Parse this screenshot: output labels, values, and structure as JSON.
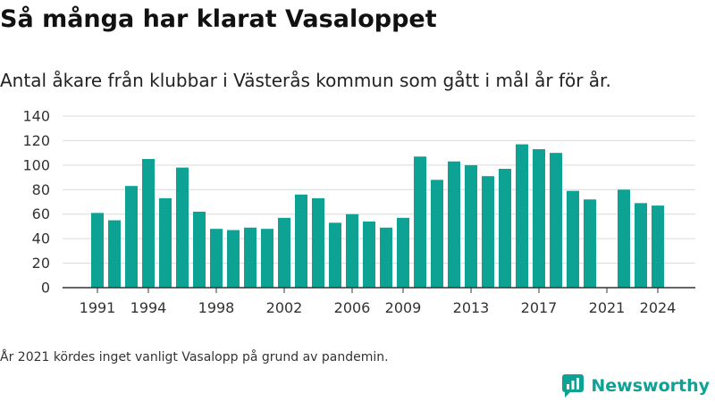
{
  "title": "Så många har klarat Vasaloppet",
  "subtitle": "Antal åkare från klubbar i Västerås kommun som gått i mål år för år.",
  "footnote": "År 2021 kördes inget vanligt Vasalopp på grund av pandemin.",
  "brand": "Newsworthy",
  "colors": {
    "bar": "#0ea294",
    "grid": "#d9d9d9",
    "axis": "#333333",
    "brand": "#0ea294"
  },
  "chart_data": {
    "type": "bar",
    "title": "Så många har klarat Vasaloppet",
    "xlabel": "",
    "ylabel": "",
    "ylim": [
      0,
      140
    ],
    "yticks": [
      0,
      20,
      40,
      60,
      80,
      100,
      120,
      140
    ],
    "xticks": [
      "1991",
      "1994",
      "1998",
      "2002",
      "2006",
      "2009",
      "2013",
      "2017",
      "2021",
      "2024"
    ],
    "grid": true,
    "legend": "none",
    "categories": [
      "1991",
      "1992",
      "1993",
      "1994",
      "1995",
      "1996",
      "1997",
      "1998",
      "1999",
      "2000",
      "2001",
      "2002",
      "2003",
      "2004",
      "2005",
      "2006",
      "2007",
      "2008",
      "2009",
      "2010",
      "2011",
      "2012",
      "2013",
      "2014",
      "2015",
      "2016",
      "2017",
      "2018",
      "2019",
      "2020",
      "2021",
      "2022",
      "2023",
      "2024"
    ],
    "values": [
      61,
      55,
      83,
      105,
      73,
      98,
      62,
      48,
      47,
      49,
      48,
      57,
      76,
      73,
      53,
      60,
      54,
      49,
      57,
      107,
      88,
      103,
      100,
      91,
      97,
      117,
      113,
      110,
      79,
      72,
      null,
      80,
      69,
      67
    ]
  }
}
